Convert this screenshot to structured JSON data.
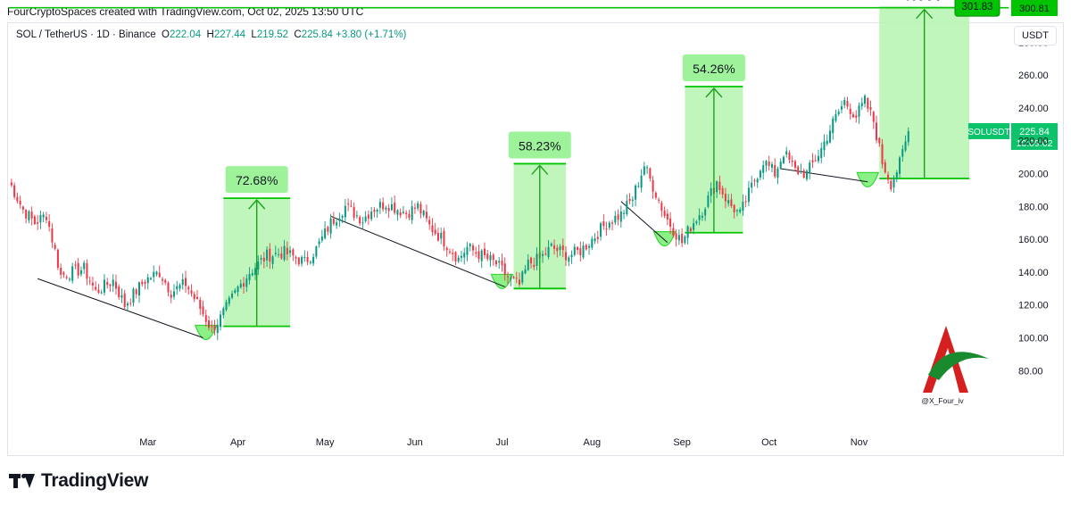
{
  "header": "FourCryptoSpaces created with TradingView.com, Oct 02, 2025 13:50 UTC",
  "legend": {
    "symbol": "SOL / TetherUS · 1D · Binance",
    "o_label": "O",
    "o_value": "222.04",
    "h_label": "H",
    "h_value": "227.44",
    "l_label": "L",
    "l_value": "219.52",
    "c_label": "C",
    "c_value": "225.84",
    "change": "+3.80 (+1.71%)"
  },
  "currency": "USDT",
  "brand": "TradingView",
  "watermark": {
    "handle": "@X_Four_iv"
  },
  "colors": {
    "up": "#089981",
    "down": "#f23645",
    "accent": "#00c400",
    "zone": "#b5f5b0",
    "label_bg": "#9ef39a"
  },
  "chart_data": {
    "type": "candlestick",
    "title": "SOL / TetherUS · 1D · Binance",
    "y_axis": {
      "min": 70,
      "max": 320,
      "ticks": [
        80,
        100,
        120,
        140,
        160,
        180,
        200,
        220,
        240,
        260,
        280
      ]
    },
    "x_axis": {
      "ticks": [
        "Mar",
        "Apr",
        "May",
        "Jun",
        "Jul",
        "Aug",
        "Sep",
        "Oct",
        "Nov"
      ]
    },
    "price_path": [
      [
        0,
        196
      ],
      [
        5,
        178
      ],
      [
        9,
        170
      ],
      [
        13,
        175
      ],
      [
        18,
        138
      ],
      [
        26,
        142
      ],
      [
        30,
        128
      ],
      [
        36,
        135
      ],
      [
        40,
        120
      ],
      [
        47,
        135
      ],
      [
        52,
        140
      ],
      [
        56,
        128
      ],
      [
        61,
        133
      ],
      [
        66,
        118
      ],
      [
        70,
        105
      ],
      [
        73,
        112
      ],
      [
        79,
        130
      ],
      [
        83,
        140
      ],
      [
        89,
        150
      ],
      [
        95,
        152
      ],
      [
        102,
        146
      ],
      [
        106,
        154
      ],
      [
        111,
        170
      ],
      [
        116,
        180
      ],
      [
        122,
        172
      ],
      [
        125,
        178
      ],
      [
        130,
        182
      ],
      [
        137,
        176
      ],
      [
        141,
        180
      ],
      [
        145,
        168
      ],
      [
        150,
        159
      ],
      [
        155,
        148
      ],
      [
        158,
        155
      ],
      [
        163,
        150
      ],
      [
        168,
        145
      ],
      [
        173,
        135
      ],
      [
        176,
        132
      ],
      [
        179,
        145
      ],
      [
        183,
        148
      ],
      [
        187,
        155
      ],
      [
        193,
        150
      ],
      [
        197,
        153
      ],
      [
        201,
        160
      ],
      [
        206,
        170
      ],
      [
        211,
        175
      ],
      [
        215,
        185
      ],
      [
        219,
        205
      ],
      [
        223,
        188
      ],
      [
        226,
        175
      ],
      [
        229,
        166
      ],
      [
        232,
        158
      ],
      [
        235,
        168
      ],
      [
        239,
        178
      ],
      [
        244,
        195
      ],
      [
        248,
        182
      ],
      [
        252,
        175
      ],
      [
        256,
        192
      ],
      [
        260,
        208
      ],
      [
        264,
        200
      ],
      [
        267,
        213
      ],
      [
        271,
        202
      ],
      [
        275,
        200
      ],
      [
        280,
        215
      ],
      [
        284,
        231
      ],
      [
        288,
        244
      ],
      [
        292,
        235
      ],
      [
        295,
        244
      ],
      [
        298,
        232
      ],
      [
        301,
        207
      ],
      [
        304,
        194
      ],
      [
        307,
        206
      ],
      [
        310,
        225
      ]
    ],
    "current_price": 225.84,
    "price_labels": [
      {
        "text": "301.83",
        "value": 301.83
      },
      {
        "text": "300.81",
        "value": 300.81
      },
      {
        "text": "SOLUSDT",
        "value": 225.84
      },
      {
        "text": "225.84",
        "value": 225.84
      },
      {
        "text": "10:09:02",
        "value": 225.84
      }
    ],
    "target_line": 301.0,
    "trendlines": [
      {
        "from": [
          10,
          136
        ],
        "to": [
          67,
          100
        ]
      },
      {
        "from": [
          111,
          174
        ],
        "to": [
          171,
          131
        ]
      },
      {
        "from": [
          211,
          183
        ],
        "to": [
          227,
          158
        ]
      },
      {
        "from": [
          266,
          203
        ],
        "to": [
          296,
          195
        ]
      }
    ],
    "projections": [
      {
        "label": "72.68%",
        "x_start": 74,
        "x_end": 97,
        "y_low": 107,
        "y_high": 185,
        "bowl_x": 68,
        "bowl_y": 100
      },
      {
        "label": "58.23%",
        "x_start": 174,
        "x_end": 192,
        "y_low": 130,
        "y_high": 206,
        "bowl_x": 170,
        "bowl_y": 131
      },
      {
        "label": "54.26%",
        "x_start": 233,
        "x_end": 253,
        "y_low": 164,
        "y_high": 253,
        "bowl_x": 226,
        "bowl_y": 157
      },
      {
        "label": "%???",
        "x_start": 300,
        "x_end": 331,
        "y_low": 197,
        "y_high": 301,
        "bowl_x": 296,
        "bowl_y": 193
      }
    ]
  }
}
